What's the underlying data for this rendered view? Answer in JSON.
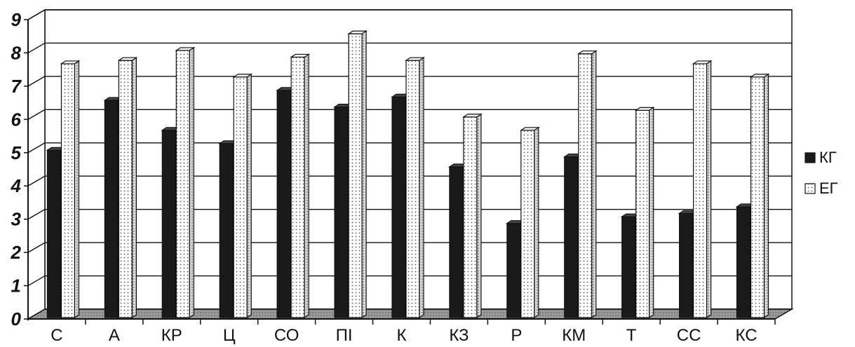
{
  "chart_data": {
    "type": "bar",
    "categories": [
      "С",
      "А",
      "КР",
      "Ц",
      "СО",
      "ПІ",
      "К",
      "КЗ",
      "Р",
      "КМ",
      "Т",
      "СС",
      "КС"
    ],
    "series": [
      {
        "name": "КГ",
        "values": [
          5.2,
          6.7,
          5.8,
          5.4,
          7.0,
          6.5,
          6.8,
          4.7,
          3.0,
          5.0,
          3.2,
          3.3,
          3.5
        ],
        "color": "#1a1a1a"
      },
      {
        "name": "ЕГ",
        "values": [
          7.8,
          7.9,
          8.2,
          7.4,
          8.0,
          8.7,
          7.9,
          6.2,
          5.8,
          8.1,
          6.4,
          7.8,
          7.4
        ],
        "color": "#f4f4f4"
      }
    ],
    "yticks": [
      "0",
      "1",
      "2",
      "3",
      "4",
      "5",
      "6",
      "7",
      "8",
      "9"
    ],
    "ylim": [
      0,
      9
    ],
    "grid": true,
    "legend_position": "right",
    "style": "3d"
  }
}
